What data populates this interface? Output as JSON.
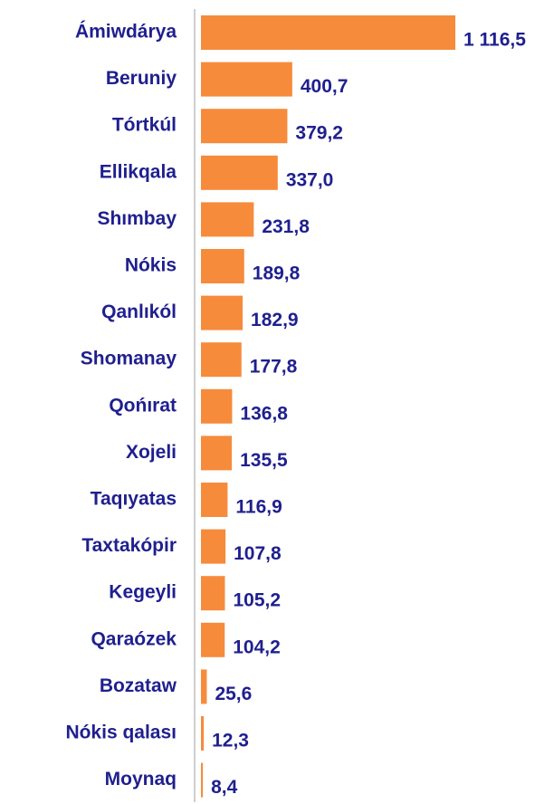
{
  "chart_data": {
    "type": "bar",
    "orientation": "horizontal",
    "categories": [
      "Ámiwdárya",
      "Beruniy",
      "Tórtkúl",
      "Ellikqala",
      "Shımbay",
      "Nókis",
      "Qanlıkól",
      "Shomanay",
      "Qońırat",
      "Xojeli",
      "Taqıyatas",
      "Taxtakópir",
      "Kegeyli",
      "Qaraózek",
      "Bozataw",
      "Nókis qalası",
      "Moynaq"
    ],
    "values": [
      1116.5,
      400.7,
      379.2,
      337.0,
      231.8,
      189.8,
      182.9,
      177.8,
      136.8,
      135.5,
      116.9,
      107.8,
      105.2,
      104.2,
      25.6,
      12.3,
      8.4
    ],
    "value_labels": [
      "1 116,5",
      "400,7",
      "379,2",
      "337,0",
      "231,8",
      "189,8",
      "182,9",
      "177,8",
      "136,8",
      "135,5",
      "116,9",
      "107,8",
      "105,2",
      "104,2",
      "25,6",
      "12,3",
      "8,4"
    ],
    "color": "#f68b3c"
  }
}
